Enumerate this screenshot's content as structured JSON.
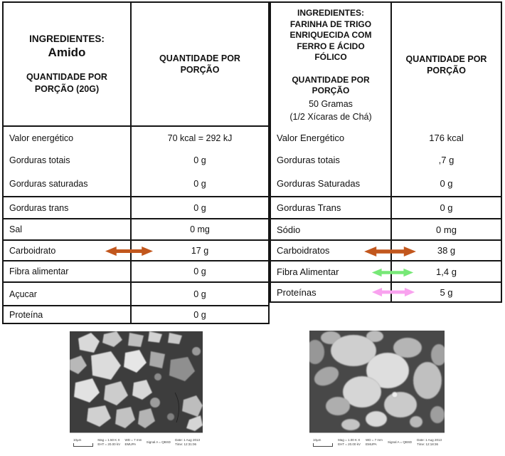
{
  "left_table": {
    "header": {
      "ingredients_label": "INGREDIENTES:",
      "product_name": "Amido",
      "portion_label": "QUANTIDADE POR\nPORÇÃO (20G)",
      "quantity_col": "QUANTIDADE POR\nPORÇÃO"
    },
    "rows": [
      {
        "label": "Valor energético",
        "value": "70 kcal = 292 kJ"
      },
      {
        "label": "Gorduras totais",
        "value": "0 g"
      },
      {
        "label": "Gorduras saturadas",
        "value": "0 g"
      },
      {
        "label": "Gorduras trans",
        "value": "0 g"
      },
      {
        "label": "Sal",
        "value": "0 mg"
      },
      {
        "label": "Carboidrato",
        "value": "17 g",
        "arrow": "carbohydrate"
      },
      {
        "label": "Fibra alimentar",
        "value": "0 g"
      },
      {
        "label": "Açucar",
        "value": "0 g"
      },
      {
        "label": "Proteína",
        "value": "0 g"
      }
    ]
  },
  "right_table": {
    "header": {
      "ingredients_title": "INGREDIENTES:\nFARINHA DE TRIGO\nENRIQUECIDA COM\nFERRO E ÁCIDO\nFÓLICO\n\nQUANTIDADE POR\nPORÇÃO",
      "portion_detail": "50 Gramas\n(1/2 Xícaras de Chá)",
      "quantity_col": "QUANTIDADE POR\nPORÇÃO"
    },
    "rows": [
      {
        "label": "Valor Energético",
        "value": "176 kcal"
      },
      {
        "label": "Gorduras totais",
        "value": ",7 g"
      },
      {
        "label": "Gorduras Saturadas",
        "value": "0 g"
      },
      {
        "label": "Gorduras Trans",
        "value": "0 g"
      },
      {
        "label": "Sódio",
        "value": "0 mg"
      },
      {
        "label": "Carboidratos",
        "value": "38 g",
        "arrow": "carbohydrate"
      },
      {
        "label": "Fibra Alimentar",
        "value": "1,4 g",
        "arrow": "fiber"
      },
      {
        "label": "Proteínas",
        "value": "5 g",
        "arrow": "protein"
      }
    ]
  },
  "arrow_colors": {
    "carbohydrate": "#C2571D",
    "fiber": "#77E877",
    "protein": "#F9A2EF"
  },
  "micrographs": {
    "left": {
      "scale": "10µm",
      "mag": "Mag = 1.50 K X",
      "eht": "EHT = 20.00 kV",
      "wd": "WD = 7 mm",
      "lab": "EMUPA",
      "signal": "Signal A = QBSD",
      "date": "Date: 1 Aug 2013",
      "time": "Time: 12:31:06"
    },
    "right": {
      "scale": "10µm",
      "mag": "Mag = 1.00 K X",
      "eht": "EHT = 20.00 kV",
      "wd": "WD = 7 mm",
      "lab": "EMUPA",
      "signal": "Signal A = QBSD",
      "date": "Date: 1 Aug 2013",
      "time": "Time: 12:18:36"
    }
  }
}
